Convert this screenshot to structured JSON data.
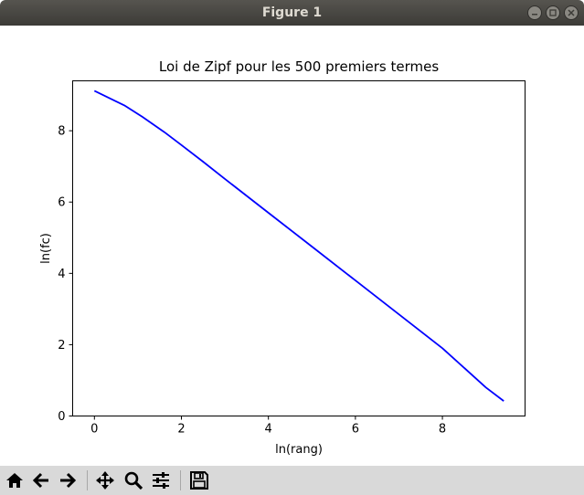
{
  "window": {
    "title": "Figure 1"
  },
  "toolbar": {
    "buttons": [
      {
        "name": "home",
        "icon": "home-icon"
      },
      {
        "name": "back",
        "icon": "arrow-left-icon"
      },
      {
        "name": "forward",
        "icon": "arrow-right-icon"
      },
      {
        "name": "pan",
        "icon": "move-icon"
      },
      {
        "name": "zoom",
        "icon": "magnifier-icon"
      },
      {
        "name": "configure-subplots",
        "icon": "sliders-icon"
      },
      {
        "name": "save",
        "icon": "floppy-disk-icon"
      }
    ]
  },
  "chart_data": {
    "type": "line",
    "title": "Loi de Zipf pour les 500 premiers termes",
    "xlabel": "ln(rang)",
    "ylabel": "ln(fc)",
    "xlim": [
      -0.5,
      9.9
    ],
    "ylim": [
      0,
      9.4
    ],
    "xticks": [
      0,
      2,
      4,
      6,
      8
    ],
    "yticks": [
      0,
      2,
      4,
      6,
      8
    ],
    "grid": false,
    "series": [
      {
        "color": "#0000ff",
        "x": [
          0.0,
          0.69,
          1.1,
          1.61,
          2.0,
          2.5,
          3.0,
          4.0,
          5.0,
          6.0,
          7.0,
          8.0,
          9.0,
          9.41
        ],
        "y": [
          9.12,
          8.71,
          8.39,
          7.96,
          7.6,
          7.13,
          6.65,
          5.7,
          4.75,
          3.8,
          2.85,
          1.9,
          0.8,
          0.42
        ]
      }
    ]
  }
}
